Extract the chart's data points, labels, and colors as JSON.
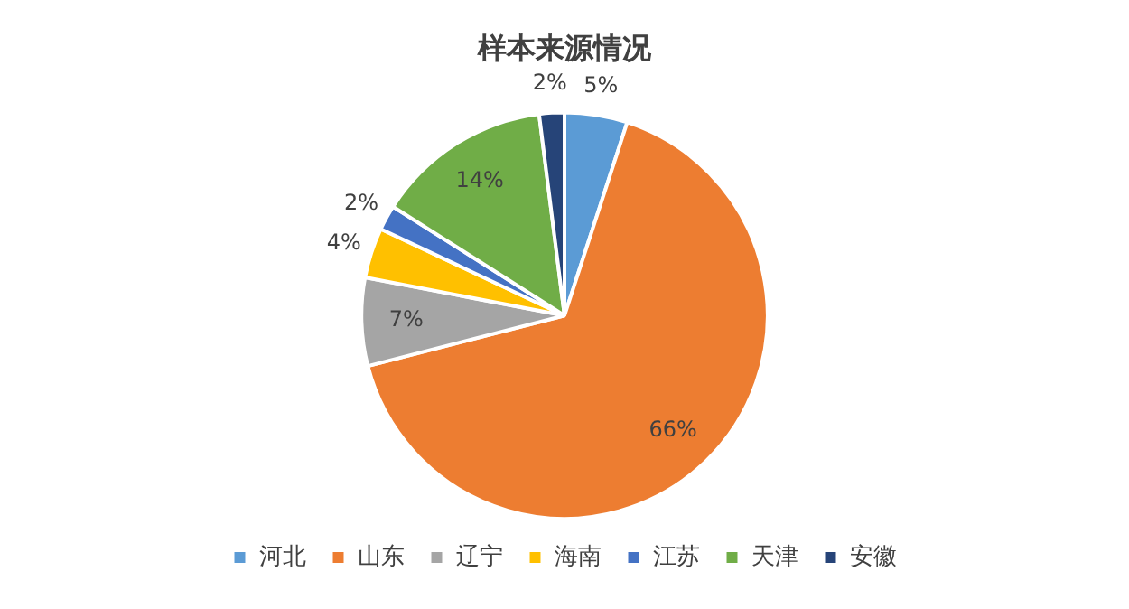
{
  "chart_data": {
    "type": "pie",
    "title": "样本来源情况",
    "categories": [
      "河北",
      "山东",
      "辽宁",
      "海南",
      "江苏",
      "天津",
      "安徽"
    ],
    "values": [
      5,
      66,
      7,
      4,
      2,
      14,
      2
    ],
    "value_labels": [
      "5%",
      "66%",
      "7%",
      "4%",
      "2%",
      "14%",
      "2%"
    ],
    "colors": [
      "#5b9bd5",
      "#ed7d31",
      "#a5a5a5",
      "#ffc000",
      "#4472c4",
      "#70ad47",
      "#264478"
    ],
    "legend": "bottom"
  }
}
